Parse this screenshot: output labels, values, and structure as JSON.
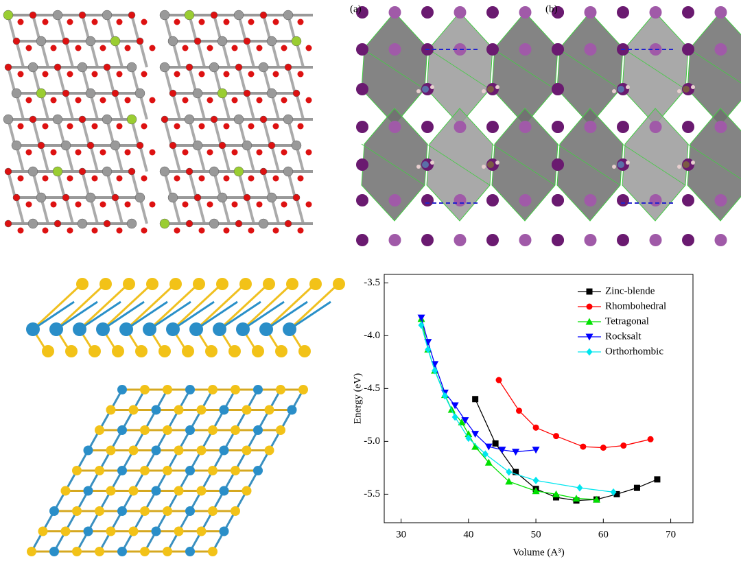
{
  "panel_labels": [
    "(a)",
    "(b)"
  ],
  "chart_data": {
    "type": "line",
    "xlabel": "Volume (A³)",
    "ylabel": "Energy (eV)",
    "xlim": [
      27.5,
      73.3
    ],
    "ylim": [
      -5.77,
      -3.42
    ],
    "xticks": [
      30,
      40,
      50,
      60,
      70
    ],
    "yticks": [
      -3.5,
      {
        "value": -4,
        "label": "-4.0"
      },
      -4.5,
      {
        "value": -5,
        "label": "-5.0"
      },
      -5.5
    ],
    "legend": "upper right",
    "series": [
      {
        "name": "Zinc-blende",
        "color": "#000000",
        "marker": "square",
        "x": [
          41,
          44,
          47,
          50,
          53,
          56,
          59,
          62,
          65,
          68
        ],
        "values": [
          -4.6,
          -5.02,
          -5.29,
          -5.45,
          -5.53,
          -5.56,
          -5.55,
          -5.5,
          -5.44,
          -5.36
        ]
      },
      {
        "name": "Rhombohedral",
        "color": "#ff0000",
        "marker": "circle",
        "x": [
          44.5,
          47.5,
          50,
          53,
          57,
          60,
          63,
          67
        ],
        "values": [
          -4.42,
          -4.71,
          -4.87,
          -4.95,
          -5.05,
          -5.06,
          -5.04,
          -4.98
        ]
      },
      {
        "name": "Tetragonal",
        "color": "#00e000",
        "marker": "triangle-up",
        "x": [
          33,
          34,
          35,
          36.5,
          37.5,
          39,
          40,
          41,
          43,
          46,
          50,
          53,
          56,
          59
        ],
        "values": [
          -3.84,
          -4.13,
          -4.33,
          -4.56,
          -4.7,
          -4.82,
          -4.93,
          -5.05,
          -5.2,
          -5.38,
          -5.47,
          -5.5,
          -5.54,
          -5.55
        ]
      },
      {
        "name": "Rocksalt",
        "color": "#0000ff",
        "marker": "triangle-down",
        "x": [
          33,
          34,
          35,
          36.5,
          38,
          39.5,
          41,
          43,
          45,
          47,
          50
        ],
        "values": [
          -3.83,
          -4.06,
          -4.27,
          -4.54,
          -4.66,
          -4.8,
          -4.93,
          -5.05,
          -5.08,
          -5.1,
          -5.08
        ]
      },
      {
        "name": "Orthorhombic",
        "color": "#00e5ee",
        "marker": "diamond",
        "x": [
          33,
          34,
          35,
          36.5,
          38,
          40,
          42.5,
          46,
          50,
          56.5,
          61.5
        ],
        "values": [
          -3.9,
          -4.13,
          -4.33,
          -4.57,
          -4.77,
          -4.97,
          -5.12,
          -5.29,
          -5.37,
          -5.44,
          -5.48
        ]
      }
    ]
  }
}
